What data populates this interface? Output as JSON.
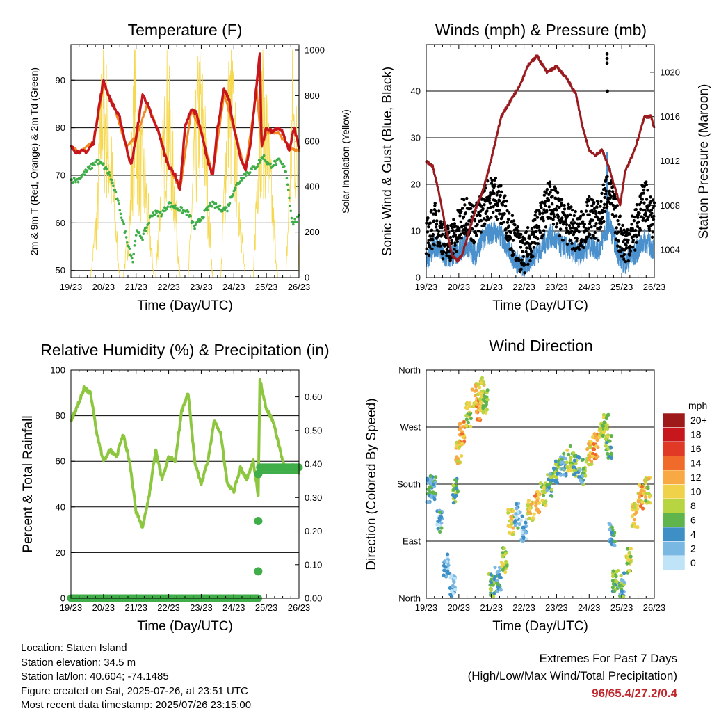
{
  "x_ticks": [
    "19/23",
    "20/23",
    "21/23",
    "22/23",
    "23/23",
    "24/23",
    "25/23",
    "26/23"
  ],
  "x_title": "Time (Day/UTC)",
  "panels": {
    "temperature": {
      "title": "Temperature (F)",
      "left_label": "2m & 9m T (Red, Orange) & 2m Td (Green)",
      "right_label": "Solar Insolation (Yellow)",
      "left_ticks": [
        "50",
        "60",
        "70",
        "80",
        "90"
      ],
      "right_ticks": [
        "0",
        "200",
        "400",
        "600",
        "800",
        "1000"
      ]
    },
    "winds": {
      "title": "Winds (mph) & Pressure (mb)",
      "left_label": "Sonic Wind & Gust (Blue, Black)",
      "right_label": "Station Pressure (Maroon)",
      "left_ticks": [
        "0",
        "10",
        "20",
        "30",
        "40"
      ],
      "right_ticks": [
        "1004",
        "1008",
        "1012",
        "1016",
        "1020"
      ]
    },
    "humidity": {
      "title": "Relative Humidity (%) & Precipitation (in)",
      "left_label": "Percent & Total Rainfall",
      "left_ticks": [
        "0",
        "20",
        "40",
        "60",
        "80",
        "100"
      ],
      "right_ticks": [
        "0.00",
        "0.10",
        "0.20",
        "0.30",
        "0.40",
        "0.50",
        "0.60"
      ]
    },
    "direction": {
      "title": "Wind Direction",
      "left_label": "Direction (Colored By Speed)",
      "left_ticks": [
        "North",
        "East",
        "South",
        "West",
        "North"
      ],
      "legend_title": "mph",
      "legend_labels": [
        "20+",
        "18",
        "16",
        "14",
        "12",
        "10",
        "8",
        "6",
        "4",
        "2",
        "0"
      ]
    }
  },
  "colors": {
    "temp_2m": "#c8171c",
    "temp_9m": "#f08a24",
    "dewpoint": "#3fae49",
    "solar": "#f6d84f",
    "wind": "#4a90cc",
    "gust": "#000000",
    "pressure": "#9a1b1f",
    "rh": "#8dc63f",
    "precip": "#3fae49",
    "extremes_text": "#c0272d",
    "speed_scale": [
      "#9e1a1a",
      "#c8171c",
      "#e03a26",
      "#f06a2a",
      "#f8a943",
      "#f0d24a",
      "#b7d441",
      "#5fb54b",
      "#3d8fc6",
      "#7ab8e4",
      "#bfe3f7"
    ]
  },
  "chart_data": [
    {
      "type": "line",
      "title": "Temperature (F)",
      "x_unit": "days since 19/23 UTC",
      "xlim": [
        0,
        7
      ],
      "ylim": [
        48.5,
        97.5
      ],
      "y2lim": [
        0,
        1000
      ],
      "series": [
        {
          "name": "2m T",
          "axis": "left",
          "x": [
            0,
            0.15,
            0.3,
            0.5,
            0.7,
            0.85,
            1.0,
            1.2,
            1.35,
            1.5,
            1.7,
            1.85,
            2.0,
            2.2,
            2.35,
            2.5,
            2.7,
            2.85,
            3.0,
            3.2,
            3.35,
            3.5,
            3.7,
            3.85,
            4.0,
            4.2,
            4.35,
            4.5,
            4.7,
            4.85,
            5.0,
            5.2,
            5.35,
            5.5,
            5.7,
            5.8,
            5.85,
            6.0,
            6.2,
            6.35,
            6.5,
            6.7,
            6.85,
            7.0
          ],
          "y": [
            76,
            75,
            75,
            75,
            77,
            84,
            90,
            86,
            84,
            82,
            76,
            72,
            78,
            87,
            85,
            82,
            79,
            75,
            72,
            70,
            67,
            80,
            84,
            83,
            79,
            73,
            70,
            80,
            88,
            86,
            80,
            74,
            71,
            76,
            89,
            96,
            76,
            80,
            79,
            80,
            79,
            75,
            80,
            76
          ]
        },
        {
          "name": "9m T",
          "axis": "left",
          "x": [
            0,
            0.3,
            0.7,
            1.0,
            1.35,
            1.7,
            2.0,
            2.35,
            2.7,
            3.0,
            3.35,
            3.7,
            4.0,
            4.35,
            4.7,
            5.0,
            5.35,
            5.7,
            5.85,
            6.0,
            6.35,
            6.7,
            7.0
          ],
          "y": [
            76,
            75,
            77,
            89,
            84,
            76,
            78,
            85,
            79,
            72,
            67,
            84,
            79,
            70,
            87,
            80,
            71,
            88,
            76,
            79,
            79,
            76,
            75
          ]
        },
        {
          "name": "2m Td",
          "axis": "left",
          "x": [
            0,
            0.2,
            0.5,
            0.8,
            1.0,
            1.2,
            1.5,
            1.7,
            1.9,
            2.0,
            2.2,
            2.5,
            2.8,
            3.0,
            3.3,
            3.6,
            3.8,
            4.0,
            4.3,
            4.6,
            4.8,
            5.0,
            5.3,
            5.5,
            5.7,
            5.9,
            6.1,
            6.4,
            6.6,
            6.8,
            7.0
          ],
          "y": [
            69,
            69,
            71,
            73,
            72,
            70,
            63,
            57,
            52,
            58,
            57,
            62,
            62,
            64,
            63,
            62,
            59,
            61,
            64,
            63,
            63,
            67,
            70,
            71,
            72,
            74,
            72,
            73,
            71,
            60,
            61
          ]
        },
        {
          "name": "Solar Insolation",
          "axis": "right",
          "x": [
            0,
            0.6,
            0.8,
            0.95,
            1.1,
            1.25,
            1.5,
            1.6,
            1.8,
            1.95,
            2.1,
            2.3,
            2.55,
            2.6,
            2.8,
            2.95,
            3.1,
            3.35,
            3.6,
            3.8,
            3.95,
            4.1,
            4.35,
            4.6,
            4.8,
            4.95,
            5.1,
            5.35,
            5.6,
            5.8,
            5.95,
            6.1,
            6.35,
            6.6,
            6.8,
            6.95,
            7.0
          ],
          "y": [
            0,
            0,
            350,
            1000,
            900,
            600,
            0,
            0,
            300,
            1000,
            700,
            500,
            0,
            0,
            600,
            980,
            700,
            0,
            0,
            700,
            1020,
            800,
            0,
            0,
            900,
            980,
            600,
            0,
            0,
            1000,
            950,
            600,
            0,
            0,
            950,
            700,
            0
          ]
        }
      ]
    },
    {
      "type": "line",
      "title": "Winds (mph) & Pressure (mb)",
      "x_unit": "days since 19/23 UTC",
      "xlim": [
        0,
        7
      ],
      "ylim": [
        0,
        50
      ],
      "y2lim": [
        1001.5,
        1022.5
      ],
      "series": [
        {
          "name": "Sonic Wind",
          "axis": "left",
          "x": [
            0,
            0.3,
            0.6,
            0.9,
            1.2,
            1.5,
            1.8,
            2.1,
            2.4,
            2.7,
            3.0,
            3.2,
            3.5,
            3.8,
            4.1,
            4.4,
            4.7,
            5.0,
            5.3,
            5.6,
            5.9,
            6.1,
            6.4,
            6.7,
            7.0
          ],
          "y": [
            4,
            7,
            4,
            5,
            7,
            5,
            9,
            10,
            8,
            4,
            2,
            4,
            6,
            9,
            7,
            6,
            5,
            7,
            6,
            12,
            5,
            3,
            5,
            8,
            6
          ]
        },
        {
          "name": "Gust",
          "axis": "left",
          "x": [
            0,
            0.3,
            0.6,
            0.9,
            1.2,
            1.5,
            1.8,
            2.1,
            2.4,
            2.7,
            3.0,
            3.2,
            3.5,
            3.8,
            4.1,
            4.4,
            4.7,
            5.0,
            5.3,
            5.6,
            5.9,
            6.1,
            6.4,
            6.7,
            7.0
          ],
          "y": [
            8,
            12,
            7,
            9,
            14,
            11,
            16,
            18,
            14,
            8,
            4,
            8,
            12,
            17,
            13,
            11,
            9,
            13,
            12,
            20,
            10,
            7,
            10,
            17,
            12
          ]
        },
        {
          "name": "Station Pressure",
          "axis": "right",
          "x": [
            0,
            0.2,
            0.4,
            0.6,
            0.8,
            0.95,
            1.1,
            1.3,
            1.5,
            1.7,
            1.9,
            2.1,
            2.3,
            2.6,
            2.9,
            3.1,
            3.4,
            3.7,
            4.0,
            4.3,
            4.6,
            4.8,
            5.0,
            5.2,
            5.4,
            5.6,
            5.8,
            5.95,
            6.1,
            6.4,
            6.7,
            6.9,
            7.0
          ],
          "y": [
            1012,
            1011.5,
            1009,
            1006,
            1003.5,
            1003,
            1003.5,
            1005.5,
            1007.5,
            1009,
            1011,
            1013.5,
            1016,
            1017.5,
            1019,
            1020.5,
            1021.5,
            1020,
            1020.5,
            1019.5,
            1018,
            1015,
            1013,
            1012.5,
            1013,
            1011.5,
            1009.5,
            1008,
            1011,
            1013,
            1016,
            1016,
            1015
          ]
        },
        {
          "name": "Gust outliers",
          "axis": "left",
          "x": [
            5.55,
            5.55,
            5.55,
            5.56
          ],
          "y": [
            48,
            47,
            46,
            40
          ]
        }
      ]
    },
    {
      "type": "line",
      "title": "Relative Humidity (%) & Precipitation (in)",
      "x_unit": "days since 19/23 UTC",
      "xlim": [
        0,
        7
      ],
      "ylim": [
        0,
        100
      ],
      "y2lim": [
        0,
        0.68
      ],
      "series": [
        {
          "name": "Relative Humidity",
          "axis": "left",
          "x": [
            0,
            0.2,
            0.4,
            0.6,
            0.8,
            1.0,
            1.2,
            1.4,
            1.6,
            1.8,
            2.0,
            2.2,
            2.4,
            2.6,
            2.8,
            3.0,
            3.2,
            3.4,
            3.6,
            3.8,
            4.0,
            4.2,
            4.4,
            4.6,
            4.8,
            5.0,
            5.2,
            5.4,
            5.6,
            5.75,
            5.8,
            6.0,
            6.2,
            6.4,
            6.6,
            6.8,
            7.0
          ],
          "y": [
            78,
            84,
            92,
            90,
            72,
            60,
            65,
            62,
            72,
            60,
            38,
            31,
            45,
            65,
            52,
            62,
            60,
            82,
            90,
            60,
            50,
            60,
            78,
            72,
            50,
            47,
            57,
            52,
            60,
            45,
            96,
            83,
            78,
            66,
            55,
            58,
            55
          ]
        },
        {
          "name": "Total Precipitation",
          "axis": "right",
          "x": [
            0,
            1,
            2,
            3,
            4,
            5,
            5.75,
            5.75,
            5.75,
            5.75,
            5.8,
            6.0,
            6.5,
            7.0
          ],
          "y": [
            0,
            0,
            0,
            0,
            0,
            0,
            0,
            0.08,
            0.23,
            0.37,
            0.39,
            0.39,
            0.39,
            0.39
          ]
        }
      ]
    },
    {
      "type": "scatter",
      "title": "Wind Direction",
      "x_unit": "days since 19/23 UTC",
      "xlim": [
        0,
        7
      ],
      "ylim": [
        0,
        360
      ],
      "y_ticks": [
        "North",
        "East",
        "South",
        "West",
        "North"
      ],
      "series": [
        {
          "name": "Direction",
          "x": [
            0.1,
            0.2,
            0.4,
            0.6,
            0.8,
            0.9,
            1.0,
            1.1,
            1.3,
            1.5,
            1.6,
            1.7,
            1.8,
            2.0,
            2.2,
            2.4,
            2.6,
            2.8,
            3.0,
            3.2,
            3.4,
            3.6,
            3.8,
            4.0,
            4.2,
            4.4,
            4.6,
            4.8,
            5.0,
            5.2,
            5.4,
            5.5,
            5.6,
            5.7,
            5.8,
            6.0,
            6.2,
            6.4,
            6.6,
            6.8
          ],
          "y": [
            170,
            175,
            120,
            50,
            20,
            170,
            230,
            260,
            290,
            320,
            300,
            330,
            310,
            20,
            30,
            60,
            120,
            130,
            110,
            140,
            150,
            165,
            180,
            200,
            210,
            220,
            210,
            200,
            230,
            240,
            260,
            270,
            240,
            100,
            30,
            20,
            60,
            130,
            160,
            170
          ],
          "speed": [
            4,
            4,
            3,
            2,
            2,
            6,
            10,
            12,
            8,
            10,
            12,
            10,
            8,
            6,
            4,
            8,
            10,
            3,
            2,
            10,
            12,
            8,
            5,
            6,
            4,
            8,
            6,
            5,
            10,
            12,
            10,
            8,
            6,
            4,
            6,
            5,
            8,
            10,
            11,
            9
          ]
        }
      ]
    }
  ],
  "info": {
    "location": "Location: Staten Island",
    "elevation": "Station elevation: 34.5 m",
    "latlon": "Station lat/lon: 40.604; -74.1485",
    "created": "Figure created on Sat, 2025-07-26, at 23:51 UTC",
    "recent": "Most recent data timestamp: 2025/07/26 23:15:00"
  },
  "extremes": {
    "heading": "Extremes For Past 7 Days",
    "subheading": "(High/Low/Max Wind/Total Precipitation)",
    "values": "96/65.4/27.2/0.4"
  }
}
